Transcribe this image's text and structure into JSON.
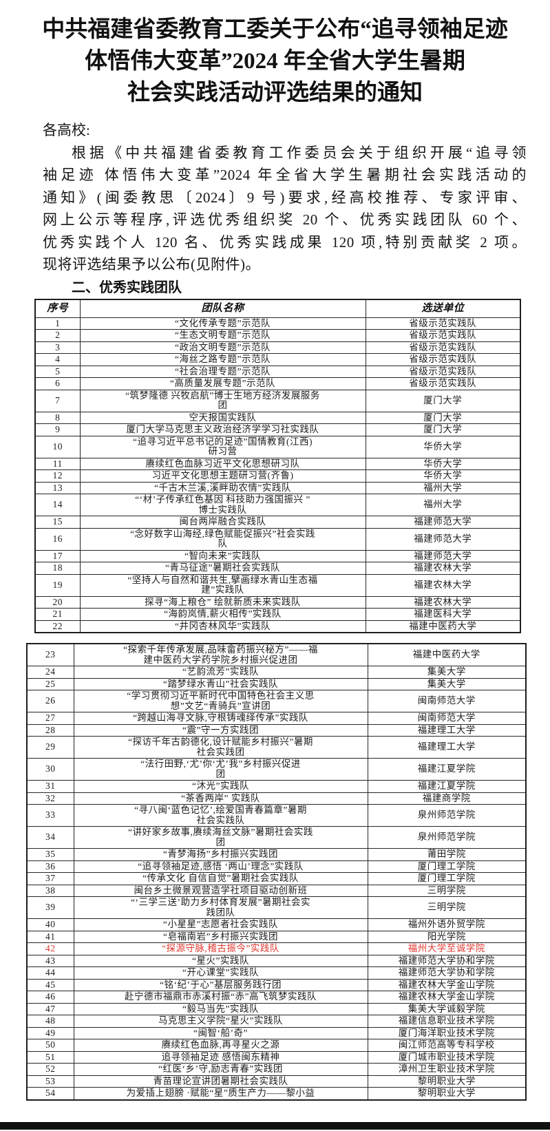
{
  "document": {
    "title_lines": [
      "中共福建省委教育工委关于公布“追寻领袖足迹",
      "体悟伟大变革”2024 年全省大学生暑期",
      "社会实践活动评选结果的通知"
    ],
    "salutation": "各高校:",
    "paragraph_lines": [
      "根据《中共福建省委教育工作委员会关于组织开展“追寻领",
      "袖足迹 体悟伟大变革”2024 年全省大学生暑期社会实践活动的",
      "通知》(闽委教思〔2024〕9 号)要求,经高校推荐、专家评审、",
      "网上公示等程序,评选优秀组织奖 20 个、优秀实践团队 60 个、",
      "优秀实践个人 120 名、优秀实践成果 120 项,特别贡献奖 2 项。",
      "现将评选结果予以公布(见附件)。"
    ],
    "section_title": "二、优秀实践团队"
  },
  "table": {
    "headers": [
      "序号",
      "团队名称",
      "选送单位"
    ],
    "highlight_color": "#e0392f",
    "first_rows": [
      {
        "no": "1",
        "team": "“文化传承专题”示范队",
        "unit": "省级示范实践队"
      },
      {
        "no": "2",
        "team": "“生态文明专题”示范队",
        "unit": "省级示范实践队"
      },
      {
        "no": "3",
        "team": "“政治文明专题”示范队",
        "unit": "省级示范实践队"
      },
      {
        "no": "4",
        "team": "“海丝之路专题”示范队",
        "unit": "省级示范实践队"
      },
      {
        "no": "5",
        "team": "“社会治理专题”示范队",
        "unit": "省级示范实践队"
      },
      {
        "no": "6",
        "team": "“高质量发展专题”示范队",
        "unit": "省级示范实践队"
      },
      {
        "no": "7",
        "team": "“筑梦隆德 兴牧启航”博士生地方经济发展服务\n团",
        "unit": "厦门大学"
      },
      {
        "no": "8",
        "team": "空天报国实践队",
        "unit": "厦门大学"
      },
      {
        "no": "9",
        "team": "厦门大学马克思主义政治经济学学习社实践队",
        "unit": "厦门大学"
      },
      {
        "no": "10",
        "team": "“追寻习近平总书记的足迹”国情教育(江西)\n研习营",
        "unit": "华侨大学"
      },
      {
        "no": "11",
        "team": "赓续红色血脉习近平文化思想研习队",
        "unit": "华侨大学"
      },
      {
        "no": "12",
        "team": "习近平文化思想主题研习营(齐鲁)",
        "unit": "华侨大学"
      },
      {
        "no": "13",
        "team": "“千古木兰溪,溪畔助农情”实践队",
        "unit": "福州大学"
      },
      {
        "no": "14",
        "team": "“‘材’子传承红色基因 科技助力强国振兴 ”\n博士实践队",
        "unit": "福州大学"
      },
      {
        "no": "15",
        "team": "闽台两岸融合实践队",
        "unit": "福建师范大学"
      },
      {
        "no": "16",
        "team": "“念好数字山海经,绿色赋能促振兴”社会实践\n队",
        "unit": "福建师范大学"
      },
      {
        "no": "17",
        "team": "“智向未来”实践队",
        "unit": "福建师范大学"
      },
      {
        "no": "18",
        "team": "“青马征途”暑期社会实践队",
        "unit": "福建农林大学"
      },
      {
        "no": "19",
        "team": "“坚持人与自然和谐共生,擘画绿水青山生态福\n建”实践队",
        "unit": "福建农林大学"
      },
      {
        "no": "20",
        "team": "探寻“海上粮仓” 绘就新质未来实践队",
        "unit": "福建农林大学"
      },
      {
        "no": "21",
        "team": "“海韵岚情,薪火相传”实践队",
        "unit": "福建医科大学"
      },
      {
        "no": "22",
        "team": "“井冈杏林风华”实践队",
        "unit": "福建中医药大学"
      }
    ],
    "second_rows": [
      {
        "no": "23",
        "team": "“探索千年传承发展,品味畲药振兴秘方”——福\n建中医药大学药学院乡村振兴促进团",
        "unit": "福建中医药大学"
      },
      {
        "no": "24",
        "team": "“艺韵流芳”实践队",
        "unit": "集美大学"
      },
      {
        "no": "25",
        "team": "“踏梦绿水青山”社会实践队",
        "unit": "集美大学"
      },
      {
        "no": "26",
        "team": "“学习贯彻习近平新时代中国特色社会主义思\n想”文艺“青骑兵”宣讲团",
        "unit": "闽南师范大学"
      },
      {
        "no": "27",
        "team": "“跨越山海寻文脉,守根铸魂绎传承”实践队",
        "unit": "闽南师范大学"
      },
      {
        "no": "28",
        "team": "“震”守一方实践团",
        "unit": "福建理工大学"
      },
      {
        "no": "29",
        "team": "“探访千年古韵德化,设计赋能乡村振兴”暑期\n社会实践团",
        "unit": "福建理工大学"
      },
      {
        "no": "30",
        "team": "“法行田野,‘尤’你‘尤’我”乡村振兴促进\n团",
        "unit": "福建江夏学院"
      },
      {
        "no": "31",
        "team": "“沐光”实践队",
        "unit": "福建江夏学院"
      },
      {
        "no": "32",
        "team": "“茶香两岸” 实践队",
        "unit": "福建商学院"
      },
      {
        "no": "33",
        "team": "“寻八闽‘蓝色记忆’,绘爱国青春篇章”暑期\n社会实践队",
        "unit": "泉州师范学院"
      },
      {
        "no": "34",
        "team": "“讲好家乡故事,赓续海丝文脉”暑期社会实践\n团",
        "unit": "泉州师范学院"
      },
      {
        "no": "35",
        "team": "“青梦海扬”乡村振兴实践团",
        "unit": "莆田学院"
      },
      {
        "no": "36",
        "team": "“追寻领袖足迹,感悟 ‘两山’理念”实践队",
        "unit": "厦门理工学院"
      },
      {
        "no": "37",
        "team": "“传承文化 自信自觉”暑期社会实践队",
        "unit": "厦门理工学院"
      },
      {
        "no": "38",
        "team": "闽台乡土微景观营造学社项目驱动创新班",
        "unit": "三明学院"
      },
      {
        "no": "39",
        "team": "“‘三学三送’助力乡村体育发展”暑期社会实\n践团队",
        "unit": "三明学院"
      },
      {
        "no": "40",
        "team": "“小星星”志愿者社会实践队",
        "unit": "福州外语外贸学院"
      },
      {
        "no": "41",
        "team": "“皂福南岩”乡村振兴实践团",
        "unit": "阳光学院"
      },
      {
        "no": "42",
        "team": "“探源守脉,稽古振今”实践队",
        "unit": "福州大学至诚学院",
        "highlight": true
      },
      {
        "no": "43",
        "team": "“星火”实践队",
        "unit": "福建师范大学协和学院"
      },
      {
        "no": "44",
        "team": "“开心课堂”实践队",
        "unit": "福建师范大学协和学院"
      },
      {
        "no": "45",
        "team": "“铭‘纪’于心”基层服务践行团",
        "unit": "福建农林大学金山学院"
      },
      {
        "no": "46",
        "team": "赴宁德市福鼎市赤溪村振“赤”高飞筑梦实践队",
        "unit": "福建农林大学金山学院"
      },
      {
        "no": "47",
        "team": "“毅马当先”实践队",
        "unit": "集美大学诚毅学院"
      },
      {
        "no": "48",
        "team": "马克思主义学院“星火”实践队",
        "unit": "福建信息职业技术学院"
      },
      {
        "no": "49",
        "team": "“闽智‘船’奇”",
        "unit": "厦门海洋职业技术学院"
      },
      {
        "no": "50",
        "team": "赓续红色血脉,再寻星火之源",
        "unit": "闽江师范高等专科学校"
      },
      {
        "no": "51",
        "team": "追寻领袖足迹 感悟闽东精神",
        "unit": "厦门城市职业技术学院"
      },
      {
        "no": "52",
        "team": "“红医‘乡’守,励志青春”实践团",
        "unit": "漳州卫生职业技术学院"
      },
      {
        "no": "53",
        "team": "青苗理论宣讲团暑期社会实践队",
        "unit": "黎明职业大学"
      },
      {
        "no": "54",
        "team": "为爱插上翅膀 ·赋能“星”质生产力——黎小益",
        "unit": "黎明职业大学"
      }
    ]
  }
}
